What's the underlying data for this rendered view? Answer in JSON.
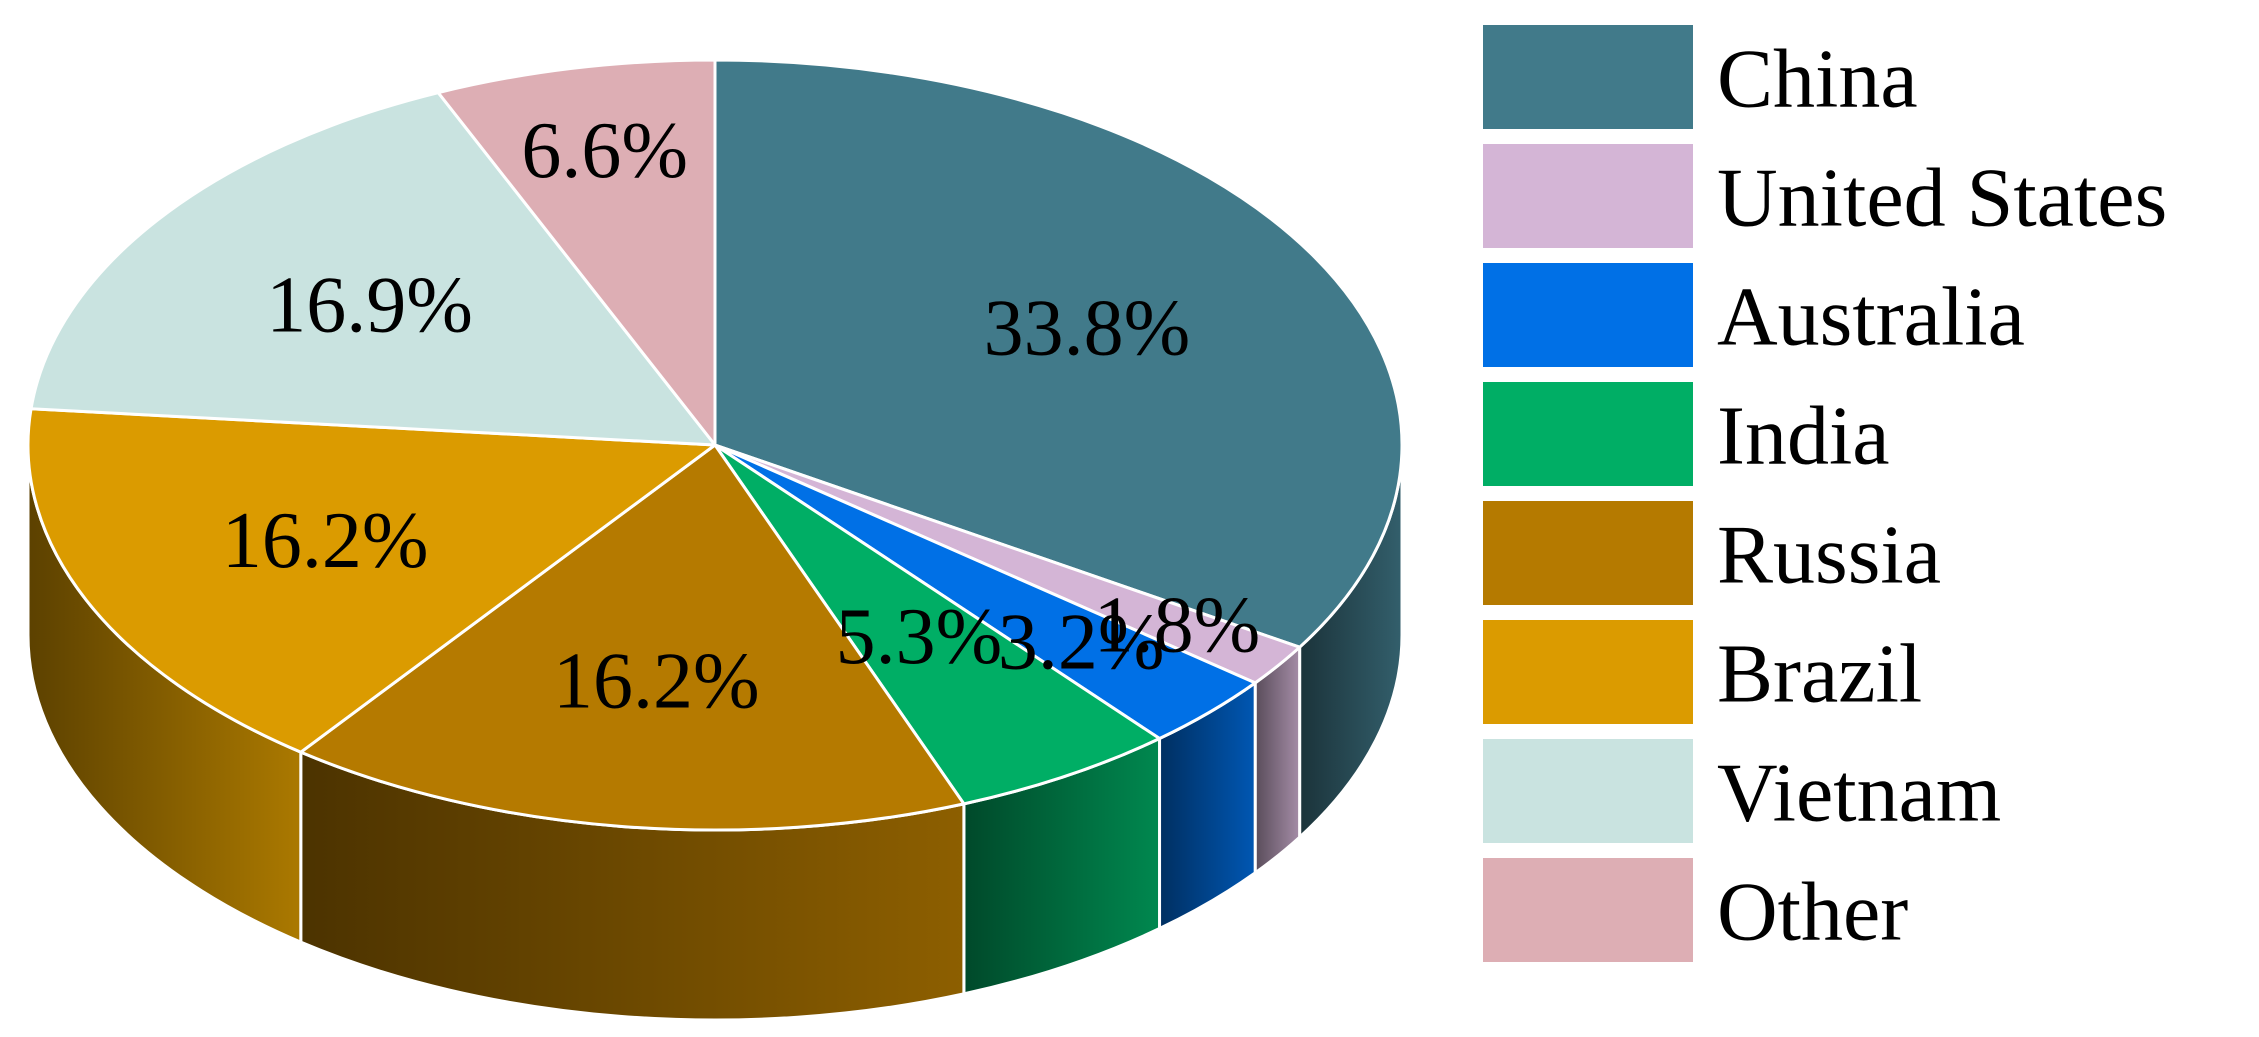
{
  "chart_data": {
    "type": "pie",
    "style": "3d",
    "categories": [
      "China",
      "United States",
      "Australia",
      "India",
      "Russia",
      "Brazil",
      "Vietnam",
      "Other"
    ],
    "values": [
      33.8,
      1.8,
      3.2,
      5.3,
      16.2,
      16.2,
      16.9,
      6.6
    ],
    "data_labels": [
      "33.8%",
      "1.8%",
      "3.2%",
      "5.3%",
      "16.2%",
      "16.2%",
      "16.9%",
      "6.6%"
    ],
    "colors": [
      "#417A8A",
      "#D4B5D6",
      "#0070E6",
      "#00AE65",
      "#B57A00",
      "#DB9B00",
      "#C9E3E0",
      "#DDAEB4"
    ],
    "legend": {
      "placement": "right",
      "entries": [
        "China",
        "United States",
        "Australia",
        "India",
        "Russia",
        "Brazil",
        "Vietnam",
        "Other"
      ]
    }
  }
}
